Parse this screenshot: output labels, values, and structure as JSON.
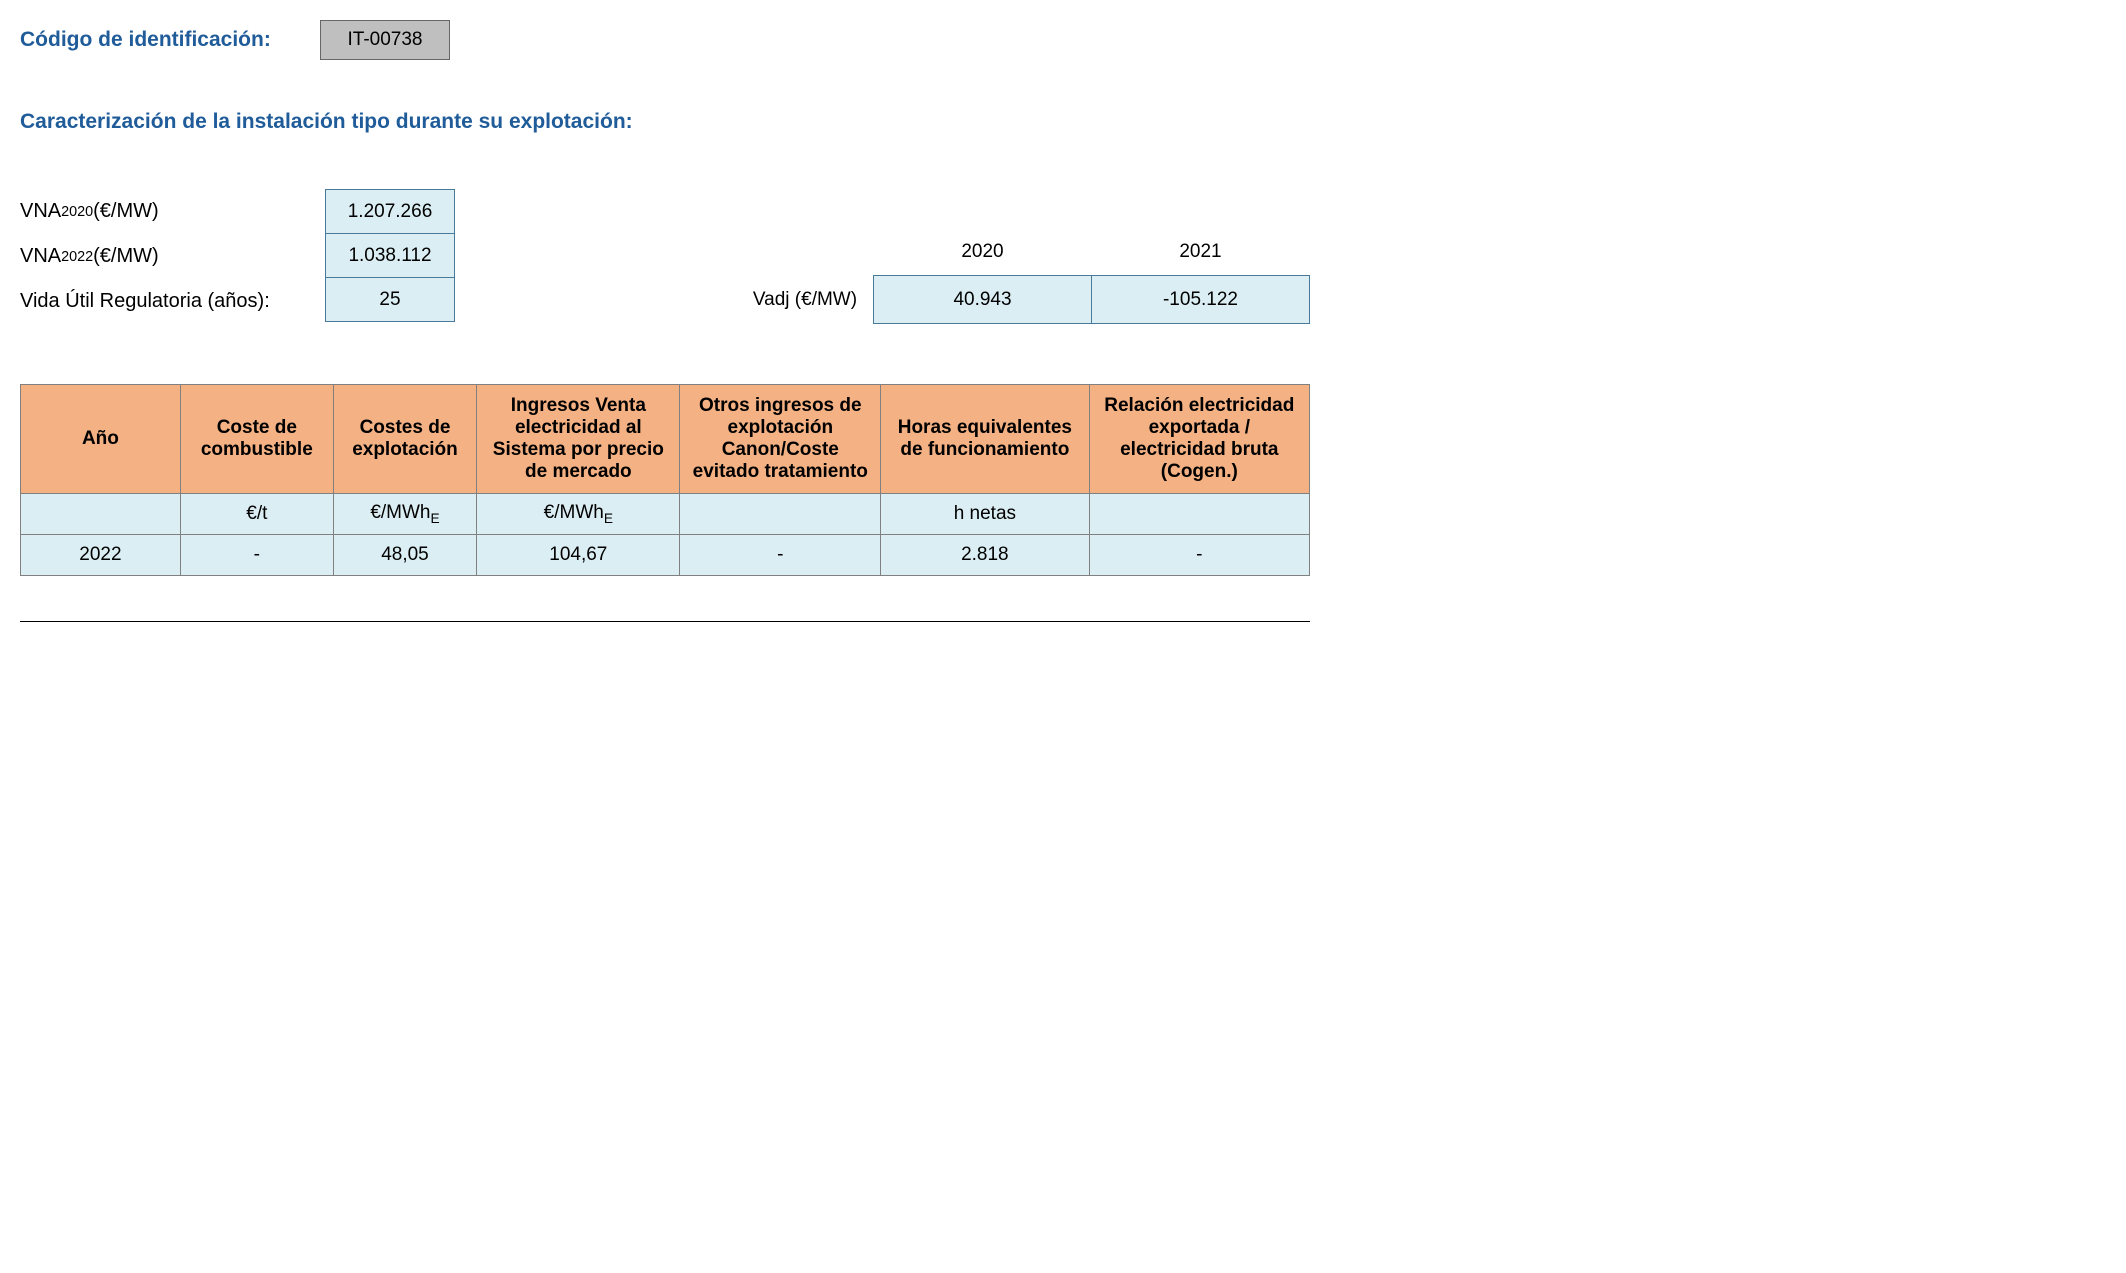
{
  "header": {
    "label": "Código de identificación:",
    "code": "IT-00738"
  },
  "section_title": "Caracterización de la instalación tipo durante su explotación:",
  "params": {
    "vna2020": {
      "label_pre": "VNA",
      "label_sub": "2020",
      "label_post": " (€/MW)",
      "value": "1.207.266"
    },
    "vna2022": {
      "label_pre": "VNA",
      "label_sub": "2022",
      "label_post": " (€/MW)",
      "value": "1.038.112"
    },
    "vida": {
      "label": "Vida Útil Regulatoria (años):",
      "value": "25"
    }
  },
  "vadj": {
    "label": "Vadj (€/MW)",
    "years": {
      "y2020": "2020",
      "y2021": "2021"
    },
    "values": {
      "v2020": "40.943",
      "v2021": "-105.122"
    }
  },
  "table": {
    "headers": {
      "ano": "Año",
      "comb": "Coste de combustible",
      "expl": "Costes de explotación",
      "ing": "Ingresos Venta electricidad al Sistema por precio de mercado",
      "otros": "Otros ingresos de explotación Canon/Coste evitado tratamiento",
      "horas": "Horas equivalentes de funcionamiento",
      "rel": "Relación electricidad exportada / electricidad bruta (Cogen.)"
    },
    "units": {
      "ano": "",
      "comb": "€/t",
      "expl_pre": "€/MWh",
      "expl_sub": "E",
      "ing_pre": "€/MWh",
      "ing_sub": "E",
      "otros": "",
      "horas": "h netas",
      "rel": ""
    },
    "row": {
      "ano": "2022",
      "comb": "-",
      "expl": "48,05",
      "ing": "104,67",
      "otros": "-",
      "horas": "2.818",
      "rel": "-"
    }
  }
}
